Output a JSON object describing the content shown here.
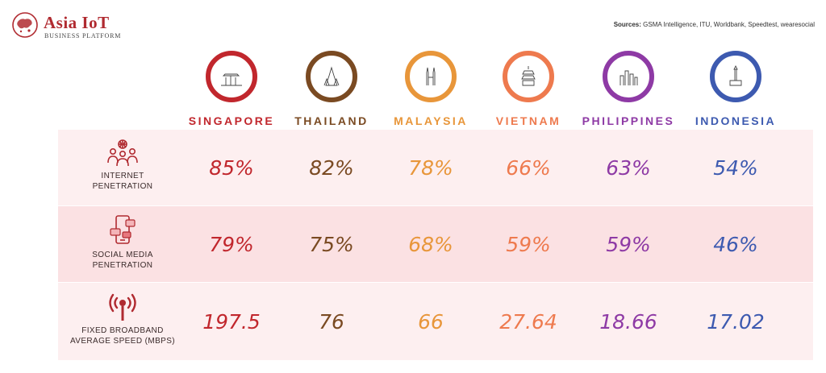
{
  "brand": {
    "title": "Asia IoT",
    "subtitle": "BUSINESS PLATFORM"
  },
  "sources": {
    "label": "Sources:",
    "text": "GSMA Intelligence, ITU, Worldbank, Speedtest, wearesocial"
  },
  "countries": [
    {
      "name": "SINGAPORE",
      "color": "#c1272d",
      "icon": "marina-bay-sands-icon"
    },
    {
      "name": "THAILAND",
      "color": "#7a4a22",
      "icon": "wat-arun-icon"
    },
    {
      "name": "MALAYSIA",
      "color": "#e8963a",
      "icon": "petronas-towers-icon"
    },
    {
      "name": "VIETNAM",
      "color": "#ee7a4e",
      "icon": "pagoda-icon"
    },
    {
      "name": "PHILIPPINES",
      "color": "#8e3aa5",
      "icon": "manila-skyline-icon"
    },
    {
      "name": "INDONESIA",
      "color": "#3d5ab0",
      "icon": "monas-icon"
    }
  ],
  "metrics": [
    {
      "label_lines": [
        "INTERNET",
        "PENETRATION"
      ],
      "icon": "internet-users-icon",
      "values": [
        "85%",
        "82%",
        "78%",
        "66%",
        "63%",
        "54%"
      ]
    },
    {
      "label_lines": [
        "SOCIAL MEDIA",
        "PENETRATION"
      ],
      "icon": "social-media-phone-icon",
      "values": [
        "79%",
        "75%",
        "68%",
        "59%",
        "59%",
        "46%"
      ]
    },
    {
      "label_lines": [
        "FIXED BROADBAND",
        "AVERAGE SPEED (MBPS)"
      ],
      "icon": "broadband-antenna-icon",
      "values": [
        "197.5",
        "76",
        "66",
        "27.64",
        "18.66",
        "17.02"
      ]
    }
  ],
  "icon_color": "#b02a30"
}
